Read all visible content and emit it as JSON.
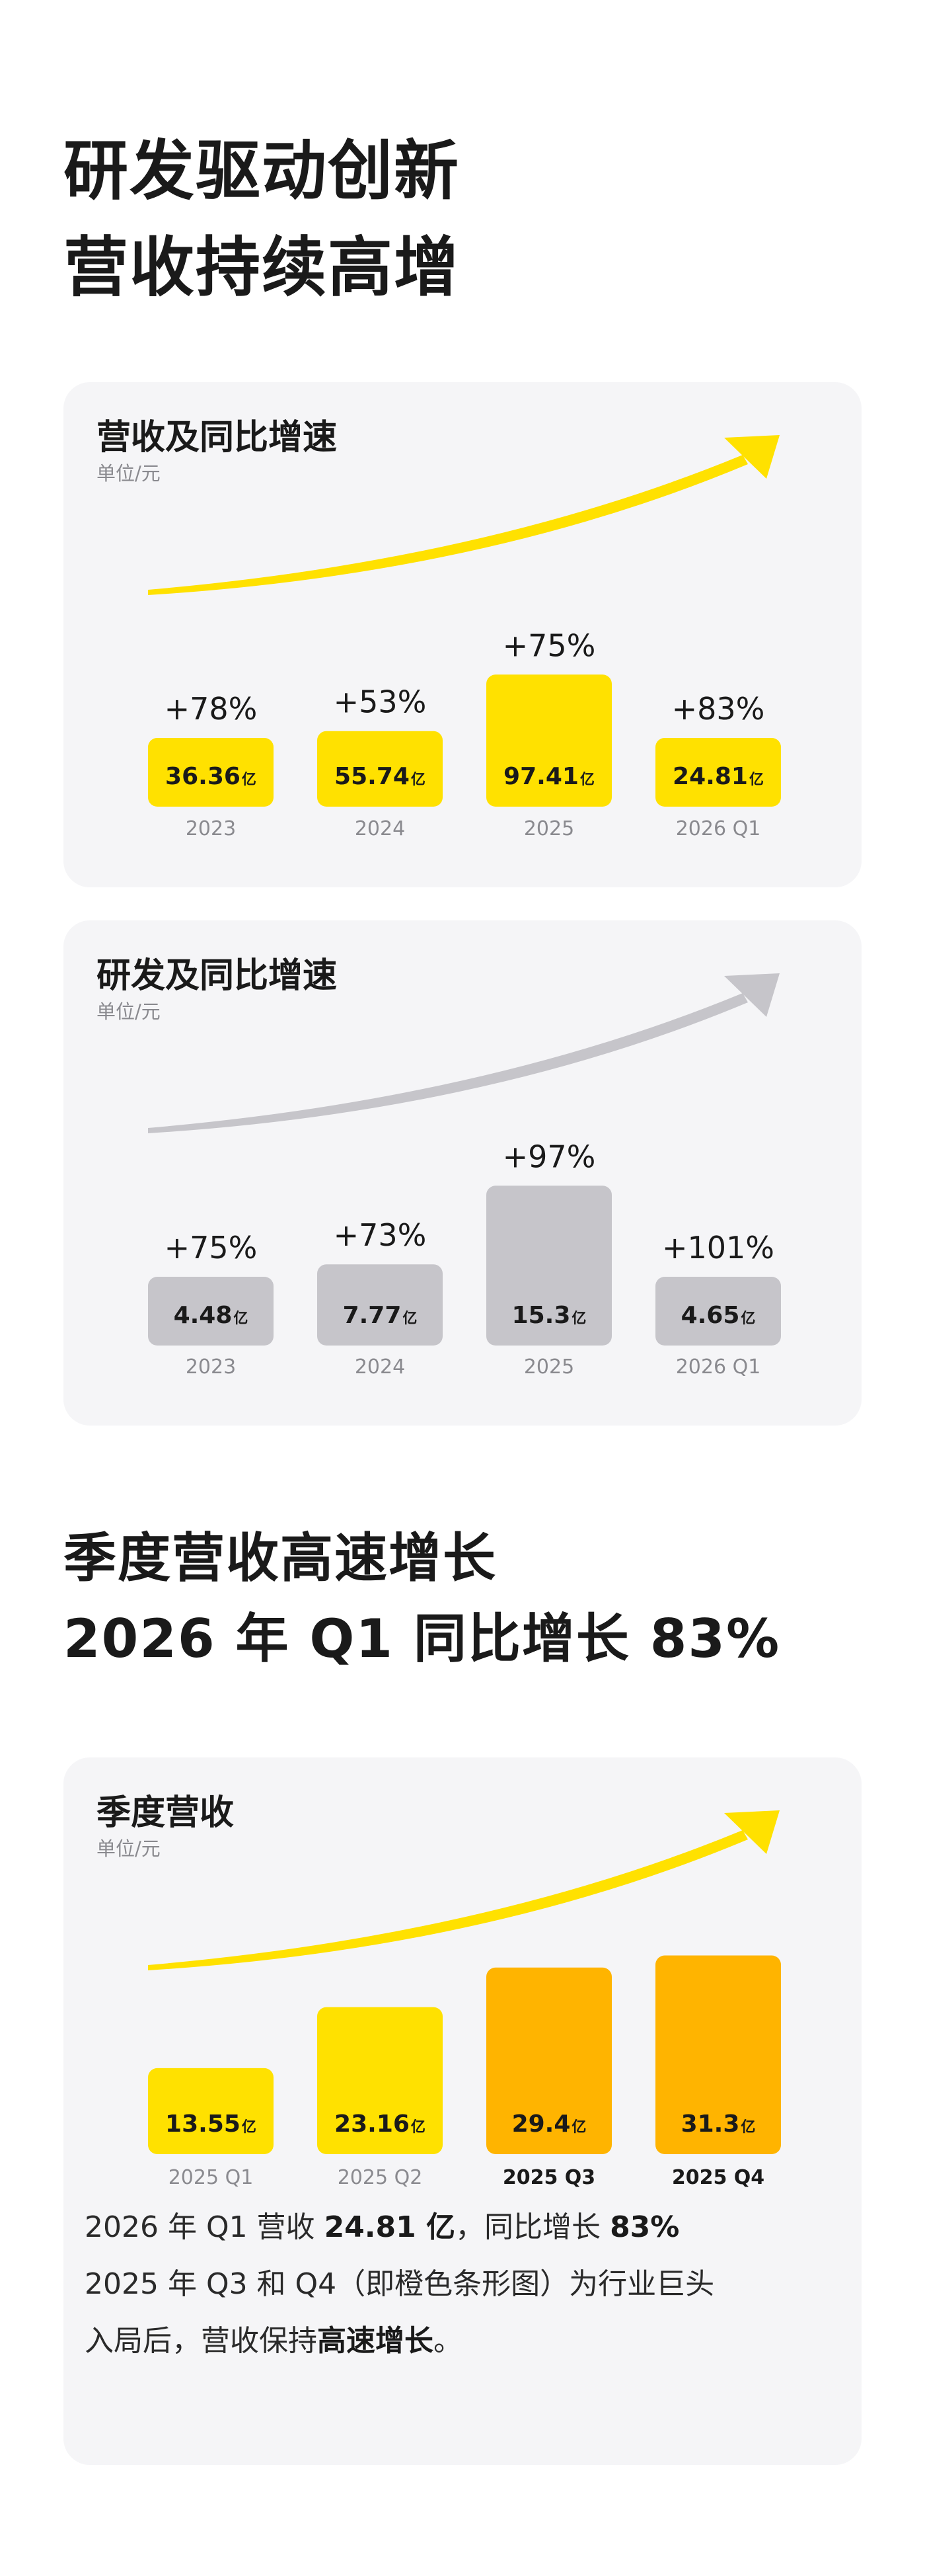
{
  "headline1": [
    "研发驱动创新",
    "营收持续高增"
  ],
  "headline2": [
    "季度营收高速增长",
    "2026 年 Q1 同比增长 83%"
  ],
  "colors": {
    "yellow": "#FFE100",
    "orange": "#FFB400",
    "gray": "#C6C5CA",
    "card": "#F5F5F7"
  },
  "chart_data": [
    {
      "type": "bar",
      "title": "营收及同比增速",
      "unit": "单位/元",
      "categories": [
        "2023",
        "2024",
        "2025",
        "2026 Q1"
      ],
      "values": [
        36.36,
        55.74,
        97.41,
        24.81
      ],
      "value_labels": [
        "36.36",
        "55.74",
        "97.41",
        "24.81"
      ],
      "value_suffix": "亿",
      "growth_labels": [
        "+78%",
        "+53%",
        "+75%",
        "+83%"
      ],
      "bar_colors": [
        "#FFE100",
        "#FFE100",
        "#FFE100",
        "#FFE100"
      ],
      "arrow_color": "#FFE100"
    },
    {
      "type": "bar",
      "title": "研发及同比增速",
      "unit": "单位/元",
      "categories": [
        "2023",
        "2024",
        "2025",
        "2026 Q1"
      ],
      "values": [
        4.48,
        7.77,
        15.3,
        4.65
      ],
      "value_labels": [
        "4.48",
        "7.77",
        "15.3",
        "4.65"
      ],
      "value_suffix": "亿",
      "growth_labels": [
        "+75%",
        "+73%",
        "+97%",
        "+101%"
      ],
      "bar_colors": [
        "#C6C5CA",
        "#C6C5CA",
        "#C6C5CA",
        "#C6C5CA"
      ],
      "arrow_color": "#C6C5CA"
    },
    {
      "type": "bar",
      "title": "季度营收",
      "unit": "单位/元",
      "categories": [
        "2025 Q1",
        "2025 Q2",
        "2025 Q3",
        "2025 Q4"
      ],
      "values": [
        13.55,
        23.16,
        29.4,
        31.3
      ],
      "value_labels": [
        "13.55",
        "23.16",
        "29.4",
        "31.3"
      ],
      "value_suffix": "亿",
      "growth_labels": [],
      "bar_colors": [
        "#FFE100",
        "#FFE100",
        "#FFB400",
        "#FFB400"
      ],
      "bold_categories": [
        false,
        false,
        true,
        true
      ],
      "arrow_color": "#FFE100"
    }
  ],
  "note": {
    "line1": {
      "a": "2026 年 Q1 营收 ",
      "b": "24.81 亿",
      "c": "，同比增长 ",
      "d": "83%"
    },
    "line2": "2025 年 Q3 和 Q4（即橙色条形图）为行业巨头",
    "line3": {
      "a": "入局后，营收保持",
      "b": "高速增长",
      "c": "。"
    }
  }
}
